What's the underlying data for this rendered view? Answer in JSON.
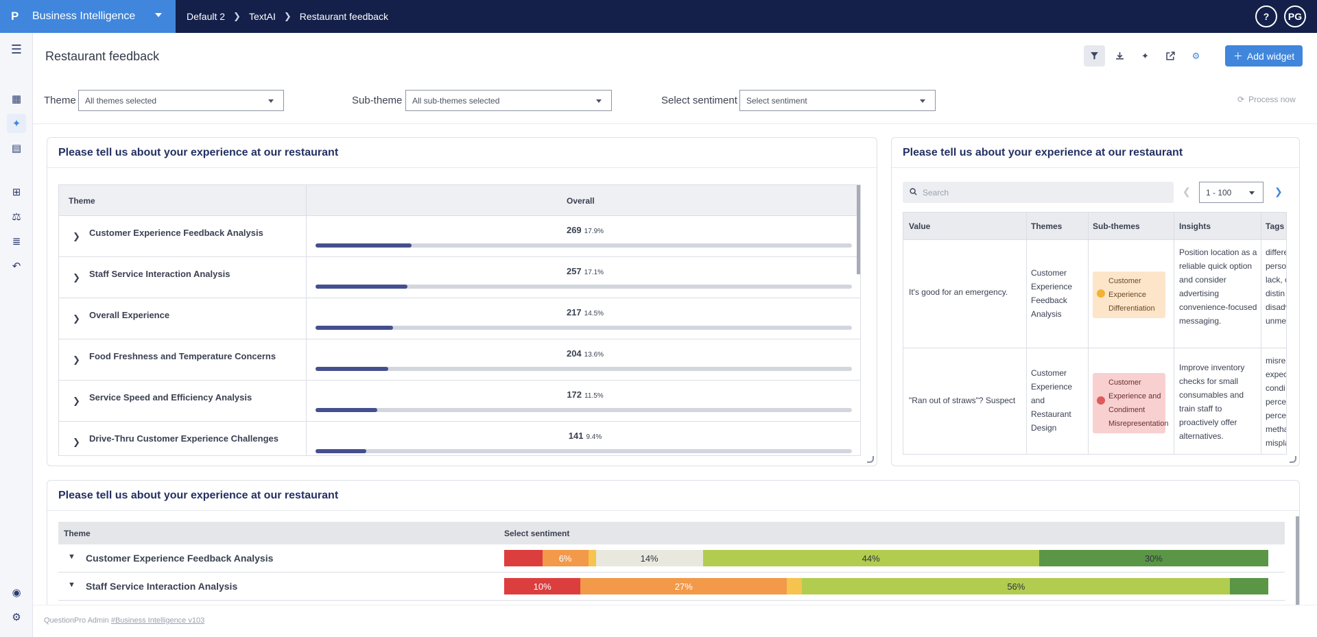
{
  "brand": {
    "logo": "P",
    "name": "Business Intelligence"
  },
  "breadcrumbs": [
    "Default 2",
    "TextAI",
    "Restaurant feedback"
  ],
  "topbar": {
    "help": "?",
    "avatar": "PG"
  },
  "page": {
    "title": "Restaurant feedback",
    "add_widget": "Add widget"
  },
  "filters": {
    "theme_label": "Theme",
    "theme_value": "All themes selected",
    "subtheme_label": "Sub-theme",
    "subtheme_value": "All sub-themes selected",
    "sentiment_label": "Select sentiment",
    "sentiment_value": "Select sentiment",
    "process_now": "Process now"
  },
  "widget1": {
    "title": "Please tell us about your experience at our restaurant",
    "col_theme": "Theme",
    "col_overall": "Overall",
    "rows": [
      {
        "label": "Customer Experience Feedback Analysis",
        "count": "269",
        "pct": "17.9%",
        "fraction": 0.179
      },
      {
        "label": "Staff Service Interaction Analysis",
        "count": "257",
        "pct": "17.1%",
        "fraction": 0.171
      },
      {
        "label": "Overall Experience",
        "count": "217",
        "pct": "14.5%",
        "fraction": 0.145
      },
      {
        "label": "Food Freshness and Temperature Concerns",
        "count": "204",
        "pct": "13.6%",
        "fraction": 0.136
      },
      {
        "label": "Service Speed and Efficiency Analysis",
        "count": "172",
        "pct": "11.5%",
        "fraction": 0.115
      },
      {
        "label": "Drive-Thru Customer Experience Challenges",
        "count": "141",
        "pct": "9.4%",
        "fraction": 0.094
      }
    ]
  },
  "widget2": {
    "title": "Please tell us about your experience at our restaurant",
    "search_placeholder": "Search",
    "page_range": "1 - 100",
    "columns": [
      "Value",
      "Themes",
      "Sub-themes",
      "Insights",
      "Tags"
    ],
    "rows": [
      {
        "value": "It's good for an emergency.",
        "theme": "Customer Experience Feedback Analysis",
        "subtheme": "Customer Experience Differentiation",
        "insight": "Position location as a reliable quick option and consider advertising convenience-focused messaging.",
        "tags": "differe perso lack, c distin disadv unmet"
      },
      {
        "value": "\"Ran out of straws\"? Suspect",
        "theme": "Customer Experience and Restaurant Design",
        "subtheme": "Customer Experience and Condiment Misrepresentation",
        "insight": "Improve inventory checks for small consumables and train staff to proactively offer alternatives.",
        "tags": "misrep expec condi percep perceiv metha mispla"
      }
    ]
  },
  "widget3": {
    "title": "Please tell us about your experience at our restaurant",
    "col_theme": "Theme",
    "col_sentiment": "Select sentiment",
    "colors": {
      "very_negative": "#dc3e3e",
      "negative": "#f2994a",
      "neutral_warn": "#f5c34e",
      "neutral": "#e8e8de",
      "positive": "#b2cc50",
      "very_positive": "#5b9646"
    },
    "rows": [
      {
        "label": "Customer Experience Feedback Analysis",
        "segments": [
          {
            "key": "very_negative",
            "pct": 5,
            "label": ""
          },
          {
            "key": "negative",
            "pct": 6,
            "label": "6%"
          },
          {
            "key": "neutral_warn",
            "pct": 1,
            "label": ""
          },
          {
            "key": "neutral",
            "pct": 14,
            "label": "14%"
          },
          {
            "key": "positive",
            "pct": 44,
            "label": "44%"
          },
          {
            "key": "very_positive",
            "pct": 30,
            "label": "30%"
          }
        ]
      },
      {
        "label": "Staff Service Interaction Analysis",
        "segments": [
          {
            "key": "very_negative",
            "pct": 10,
            "label": "10%"
          },
          {
            "key": "negative",
            "pct": 27,
            "label": "27%"
          },
          {
            "key": "neutral_warn",
            "pct": 2,
            "label": ""
          },
          {
            "key": "positive",
            "pct": 56,
            "label": "56%"
          },
          {
            "key": "very_positive",
            "pct": 5,
            "label": ""
          }
        ]
      }
    ]
  },
  "footer": {
    "prefix": "QuestionPro Admin",
    "link": "#Business Intelligence v103"
  }
}
